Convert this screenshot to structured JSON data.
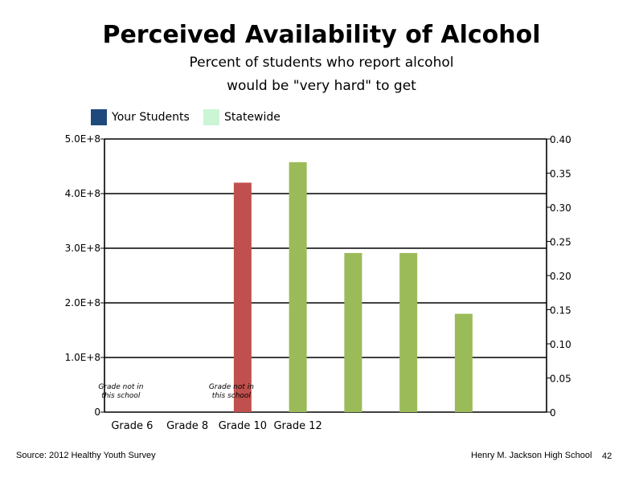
{
  "header": {
    "title": "Perceived Availability of Alcohol",
    "subtitle_line1": "Percent of students who report alcohol",
    "subtitle_line2": "would be \"very hard\" to get"
  },
  "legend": [
    {
      "label": "Your Students",
      "color": "#1f497d"
    },
    {
      "label": "Statewide",
      "color": "#ccf5d6"
    }
  ],
  "footer": {
    "source": "Source: 2012 Healthy Youth Survey",
    "school": "Henry M. Jackson High School",
    "page": "42"
  },
  "chart_data": {
    "type": "bar",
    "categories": [
      "Grade 6",
      "Grade 8",
      "Grade 10",
      "Grade 12"
    ],
    "y_left": {
      "range": [
        0,
        500000000
      ],
      "ticks": [
        "0",
        "1.0E+8",
        "2.0E+8",
        "3.0E+8",
        "4.0E+8",
        "5.0E+8"
      ]
    },
    "y_right": {
      "range": [
        0,
        0.4
      ],
      "ticks": [
        "0",
        "0.05",
        "0.10",
        "0.15",
        "0.20",
        "0.25",
        "0.30",
        "0.35",
        "0.40"
      ]
    },
    "grid": true,
    "notes": [
      {
        "category": "Grade 6",
        "text_line1": "Grade not in",
        "text_line2": "this school"
      },
      {
        "category": "Grade 10",
        "text_line1": "Grade not in",
        "text_line2": "this school"
      }
    ],
    "bars": [
      {
        "axis": "left",
        "value": 420000000,
        "color": "#c0504d"
      },
      {
        "axis": "right",
        "value": 0.366,
        "color": "#9bbb59"
      },
      {
        "axis": "right",
        "value": 0.233,
        "color": "#9bbb59"
      },
      {
        "axis": "right",
        "value": 0.233,
        "color": "#9bbb59"
      },
      {
        "axis": "right",
        "value": 0.144,
        "color": "#9bbb59"
      }
    ]
  }
}
